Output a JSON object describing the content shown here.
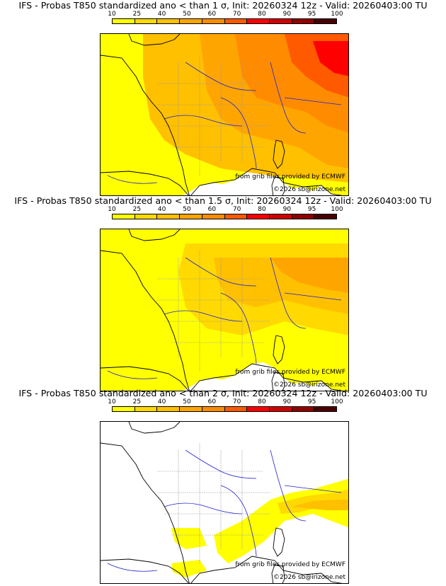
{
  "panels": [
    {
      "title": "IFS - Probas T850  standardized ano < than 1 σ, Init: 20260324 12z - Valid: 20260403:00 TU",
      "source": "from grib files provided by ECMWF",
      "copyright": "©2026 sb@irizone.net",
      "max_probability_percent": 85
    },
    {
      "title": "IFS - Probas T850  standardized ano < than 1.5 σ, Init: 20260324 12z - Valid: 20260403:00 TU",
      "source": "from grib files provided by ECMWF",
      "copyright": "©2026 sb@irizone.net",
      "max_probability_percent": 65
    },
    {
      "title": "IFS - Probas T850  standardized ano < than 2 σ, Init: 20260324 12z - Valid: 20260403:00 TU",
      "source": "from grib files provided by ECMWF",
      "copyright": "©2026 sb@irizone.net",
      "max_probability_percent": 35
    }
  ],
  "legend": {
    "ticks": [
      "10",
      "25",
      "40",
      "50",
      "60",
      "70",
      "80",
      "90",
      "95",
      "100"
    ],
    "colors": [
      "#ffff00",
      "#ffd900",
      "#ffc000",
      "#ffa500",
      "#ff8c00",
      "#ff5a00",
      "#ff0000",
      "#d00000",
      "#900000",
      "#4a0000"
    ]
  },
  "map_colors": {
    "sea": "#ffffff",
    "coast": "#000000",
    "river": "#2020d0",
    "region": "#9a9a9a"
  }
}
